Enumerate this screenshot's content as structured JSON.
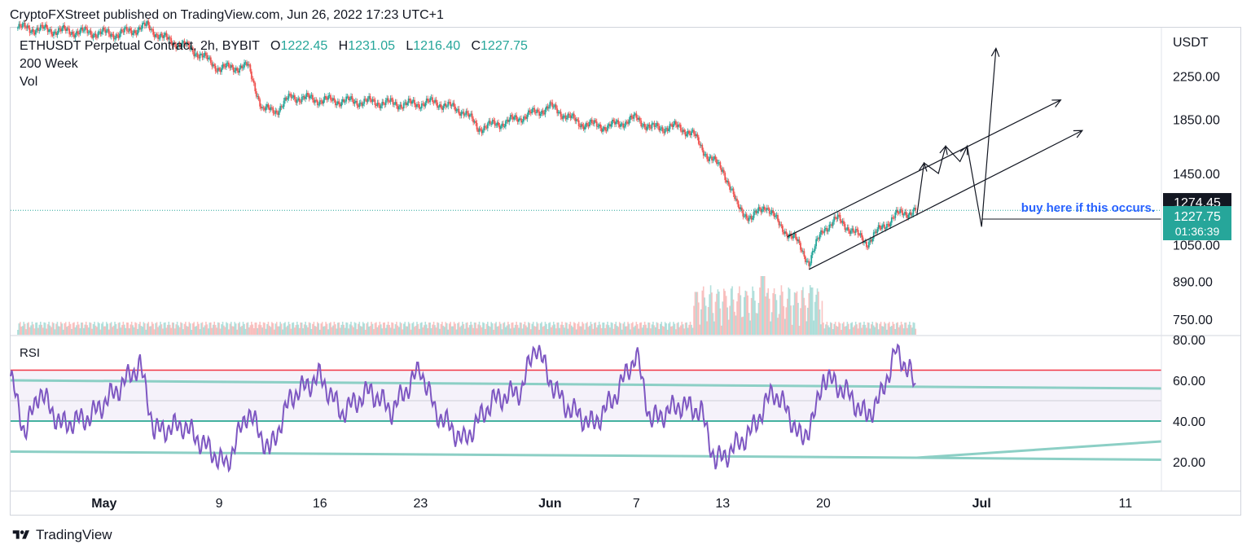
{
  "header": {
    "publisher": "CryptoFXStreet published on TradingView.com, Jun 26, 2022 17:23 UTC+1"
  },
  "legend": {
    "symbol": "ETHUSDT Perpetual Contract, 2h, BYBIT",
    "open_label": "O",
    "open": "1222.45",
    "high_label": "H",
    "high": "1231.05",
    "low_label": "L",
    "low": "1216.40",
    "close_label": "C",
    "close": "1227.75",
    "indicator1": "200 Week",
    "indicator2": "Vol"
  },
  "rsi_label": "RSI",
  "annotation": "buy here if this occurs.",
  "logo_text": "TradingView",
  "colors": {
    "up": "#26a69a",
    "down": "#ef5350",
    "rsi": "#7e57c2",
    "overbought": "#f23645",
    "oversold": "#089981",
    "annotation": "#2962ff"
  },
  "chart_data": {
    "type": "candlestick",
    "currency": "USDT",
    "price_axis": {
      "ticks": [
        "2250.00",
        "1850.00",
        "1450.00",
        "1050.00",
        "890.00",
        "750.00"
      ],
      "tick_values": [
        2250,
        1850,
        1450,
        1050,
        890,
        750
      ],
      "ylim": [
        700,
        2800
      ]
    },
    "price_labels": {
      "level": "1274.45",
      "last": "1227.75",
      "countdown": "01:36:39"
    },
    "rsi_axis": {
      "ticks": [
        "80.00",
        "60.00",
        "40.00",
        "20.00"
      ],
      "tick_values": [
        80,
        60,
        40,
        20
      ],
      "overbought": 65,
      "oversold": 40,
      "midline": 50,
      "band_top": 60
    },
    "x_axis": {
      "labels": [
        "May",
        "9",
        "16",
        "23",
        "Jun",
        "7",
        "13",
        "20",
        "Jul",
        "11"
      ],
      "label_days": [
        0,
        8,
        15,
        22,
        31,
        37,
        43,
        50,
        61,
        71
      ],
      "xlim": [
        -6.5,
        73.5
      ]
    },
    "price_path": [
      [
        -6,
        2800
      ],
      [
        -3,
        2760
      ],
      [
        -1,
        2740
      ],
      [
        1,
        2720
      ],
      [
        3,
        2820
      ],
      [
        4,
        2680
      ],
      [
        6,
        2550
      ],
      [
        8,
        2330
      ],
      [
        10,
        2350
      ],
      [
        11,
        1930
      ],
      [
        12,
        1930
      ],
      [
        13,
        2050
      ],
      [
        15,
        2020
      ],
      [
        17,
        2010
      ],
      [
        19,
        2000
      ],
      [
        21,
        1980
      ],
      [
        23,
        2000
      ],
      [
        25,
        1920
      ],
      [
        26,
        1780
      ],
      [
        28,
        1830
      ],
      [
        30,
        1910
      ],
      [
        31,
        1960
      ],
      [
        33,
        1820
      ],
      [
        35,
        1790
      ],
      [
        37,
        1860
      ],
      [
        38,
        1780
      ],
      [
        40,
        1790
      ],
      [
        41,
        1720
      ],
      [
        42,
        1560
      ],
      [
        43,
        1480
      ],
      [
        44,
        1250
      ],
      [
        45,
        1180
      ],
      [
        46,
        1260
      ],
      [
        47,
        1140
      ],
      [
        48,
        1080
      ],
      [
        49,
        970
      ],
      [
        50,
        1130
      ],
      [
        51,
        1180
      ],
      [
        52,
        1120
      ],
      [
        53,
        1060
      ],
      [
        54,
        1130
      ],
      [
        55,
        1200
      ],
      [
        56,
        1220
      ],
      [
        56.5,
        1230
      ]
    ],
    "rsi_path": [
      [
        -6.5,
        62
      ],
      [
        -5.5,
        34
      ],
      [
        -4.5,
        55
      ],
      [
        -3,
        38
      ],
      [
        -1,
        42
      ],
      [
        1,
        56
      ],
      [
        2.5,
        68
      ],
      [
        3.5,
        35
      ],
      [
        5.5,
        38
      ],
      [
        7,
        28
      ],
      [
        8.5,
        18
      ],
      [
        10,
        45
      ],
      [
        11.5,
        25
      ],
      [
        13,
        52
      ],
      [
        15,
        62
      ],
      [
        16.5,
        44
      ],
      [
        18.5,
        55
      ],
      [
        20,
        45
      ],
      [
        22,
        66
      ],
      [
        23,
        45
      ],
      [
        25,
        30
      ],
      [
        27,
        50
      ],
      [
        29,
        55
      ],
      [
        30,
        78
      ],
      [
        31,
        60
      ],
      [
        32,
        48
      ],
      [
        34,
        38
      ],
      [
        35.5,
        52
      ],
      [
        37,
        73
      ],
      [
        38,
        40
      ],
      [
        40,
        48
      ],
      [
        41.5,
        45
      ],
      [
        42.5,
        20
      ],
      [
        43.5,
        25
      ],
      [
        45,
        35
      ],
      [
        46.5,
        55
      ],
      [
        47.5,
        45
      ],
      [
        48.5,
        30
      ],
      [
        49.5,
        45
      ],
      [
        50,
        62
      ],
      [
        51.5,
        55
      ],
      [
        53,
        42
      ],
      [
        54,
        52
      ],
      [
        55,
        74
      ],
      [
        56,
        65
      ],
      [
        56.5,
        52
      ]
    ],
    "rsi_current": 55,
    "trendlines": {
      "channel_upper": [
        [
          47.5,
          1090
        ],
        [
          56,
          1280
        ]
      ],
      "channel_lower": [
        [
          49,
          940
        ],
        [
          56.5,
          1200
        ]
      ],
      "projection_path": [
        [
          56.5,
          1200
        ],
        [
          57,
          1520
        ],
        [
          58,
          1450
        ],
        [
          58.5,
          1640
        ],
        [
          59.5,
          1530
        ],
        [
          60,
          1640
        ],
        [
          61,
          1140
        ],
        [
          62,
          2550
        ]
      ],
      "channel_upper_ext": [
        [
          47.5,
          1090
        ],
        [
          66.5,
          2020
        ]
      ],
      "channel_lower_ext": [
        [
          49,
          940
        ],
        [
          68,
          1760
        ]
      ],
      "rsi_upper_line": [
        [
          -6.5,
          60
        ],
        [
          73.5,
          56
        ]
      ],
      "rsi_lower_line": [
        [
          -6.5,
          25
        ],
        [
          56.5,
          22
        ],
        [
          73.5,
          21
        ]
      ],
      "rsi_rising_line": [
        [
          56.5,
          22
        ],
        [
          73.5,
          30
        ]
      ]
    }
  }
}
